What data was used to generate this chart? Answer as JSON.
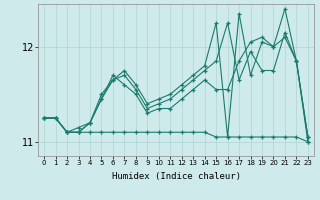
{
  "xlabel": "Humidex (Indice chaleur)",
  "ylabel": "",
  "background_color": "#ceeaea",
  "line_color": "#1a7a6e",
  "xlim": [
    -0.5,
    23.5
  ],
  "ylim": [
    10.85,
    12.45
  ],
  "yticks": [
    11,
    12
  ],
  "xticks": [
    0,
    1,
    2,
    3,
    4,
    5,
    6,
    7,
    8,
    9,
    10,
    11,
    12,
    13,
    14,
    15,
    16,
    17,
    18,
    19,
    20,
    21,
    22,
    23
  ],
  "series": [
    [
      11.25,
      11.25,
      11.1,
      11.1,
      11.1,
      11.1,
      11.1,
      11.1,
      11.1,
      11.1,
      11.1,
      11.1,
      11.1,
      11.1,
      11.1,
      11.05,
      11.05,
      11.05,
      11.05,
      11.05,
      11.05,
      11.05,
      11.05,
      11.0
    ],
    [
      11.25,
      11.25,
      11.1,
      11.15,
      11.2,
      11.45,
      11.7,
      11.6,
      11.5,
      11.3,
      11.35,
      11.35,
      11.45,
      11.55,
      11.65,
      11.55,
      11.55,
      11.85,
      12.05,
      12.1,
      12.0,
      12.1,
      11.85,
      11.0
    ],
    [
      11.25,
      11.25,
      11.1,
      11.1,
      11.2,
      11.45,
      11.65,
      11.7,
      11.55,
      11.35,
      11.4,
      11.45,
      11.55,
      11.65,
      11.75,
      11.85,
      12.25,
      11.65,
      11.95,
      11.75,
      11.75,
      12.15,
      11.85,
      11.05
    ],
    [
      11.25,
      11.25,
      11.1,
      11.1,
      11.2,
      11.5,
      11.65,
      11.75,
      11.6,
      11.4,
      11.45,
      11.5,
      11.6,
      11.7,
      11.8,
      12.25,
      11.05,
      12.35,
      11.7,
      12.05,
      12.0,
      12.4,
      11.85,
      11.05
    ]
  ]
}
